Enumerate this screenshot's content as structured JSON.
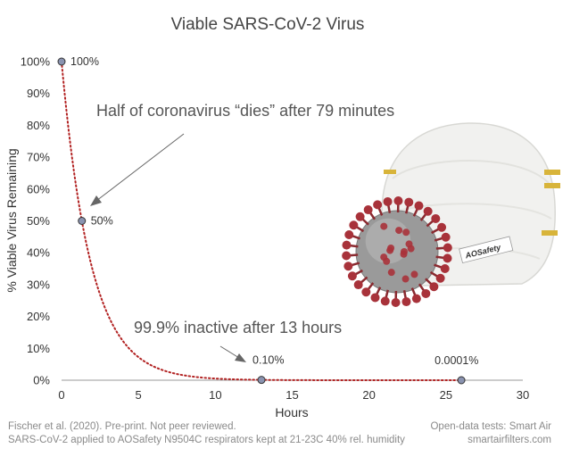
{
  "chart_data": {
    "type": "scatter",
    "title": "Viable SARS-CoV-2 Virus",
    "xlabel": "Hours",
    "ylabel": "% Viable Virus Remaining",
    "xlim": [
      0,
      30
    ],
    "ylim": [
      0,
      100
    ],
    "x_ticks": [
      0,
      5,
      10,
      15,
      20,
      25,
      30
    ],
    "y_ticks": [
      "0%",
      "10%",
      "20%",
      "30%",
      "40%",
      "50%",
      "60%",
      "70%",
      "80%",
      "90%",
      "100%"
    ],
    "grid": false,
    "points": [
      {
        "x": 0,
        "y": 100,
        "label": "100%"
      },
      {
        "x": 1.32,
        "y": 50,
        "label": "50%"
      },
      {
        "x": 13,
        "y": 0.1,
        "label": "0.10%"
      },
      {
        "x": 26,
        "y": 0.0001,
        "label": "0.0001%"
      }
    ],
    "fit_curve": {
      "style": "dotted",
      "color": "#b22222",
      "half_life_hours": 1.32
    },
    "annotations": [
      {
        "text": "Half of coronavirus “dies” after 79 minutes"
      },
      {
        "text": "99.9% inactive after 13 hours"
      }
    ]
  },
  "footer": {
    "left_line1": "Fischer et al. (2020). Pre-print. Not peer reviewed.",
    "left_line2": "SARS-CoV-2 applied to AOSafety N9504C respirators kept at 21-23C 40% rel. humidity",
    "right_line1": "Open-data tests: Smart Air",
    "right_line2": "smartairfilters.com"
  },
  "image": {
    "mask_label": "AOSafety"
  },
  "colors": {
    "curve": "#b22222",
    "point_fill": "#8a93b0",
    "point_stroke": "#333333",
    "virus": "#a8323a"
  }
}
